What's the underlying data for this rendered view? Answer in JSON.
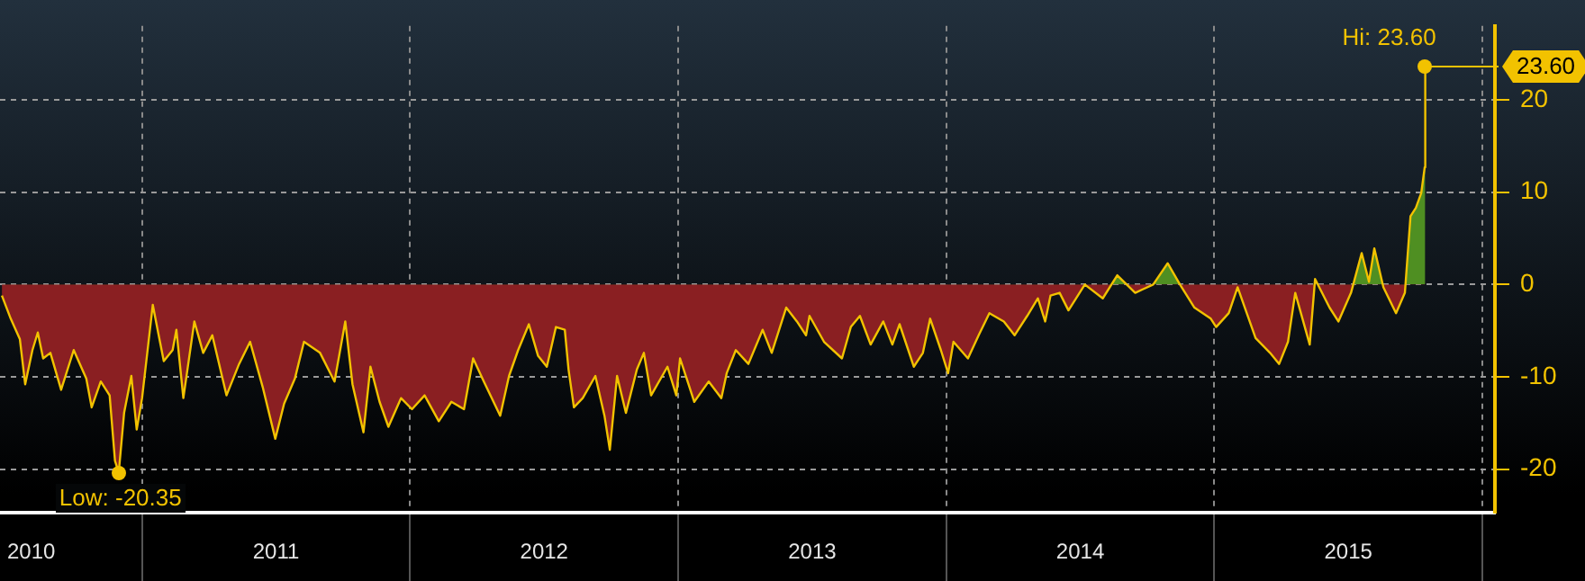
{
  "chart_data": {
    "type": "area",
    "x": [
      2010.477,
      2010.51,
      2010.544,
      2010.564,
      2010.591,
      2010.611,
      2010.631,
      2010.658,
      2010.698,
      2010.745,
      2010.792,
      2010.812,
      2010.846,
      2010.879,
      2010.899,
      2010.913,
      2010.933,
      2010.96,
      2010.98,
      2011.0,
      2011.04,
      2011.06,
      2011.081,
      2011.114,
      2011.128,
      2011.154,
      2011.195,
      2011.228,
      2011.262,
      2011.315,
      2011.362,
      2011.403,
      2011.45,
      2011.497,
      2011.53,
      2011.57,
      2011.604,
      2011.664,
      2011.718,
      2011.758,
      2011.785,
      2011.826,
      2011.852,
      2011.886,
      2011.919,
      2011.966,
      2012.007,
      2012.054,
      2012.107,
      2012.154,
      2012.201,
      2012.235,
      2012.275,
      2012.336,
      2012.369,
      2012.403,
      2012.443,
      2012.477,
      2012.51,
      2012.544,
      2012.577,
      2012.591,
      2012.611,
      2012.644,
      2012.691,
      2012.725,
      2012.745,
      2012.772,
      2012.805,
      2012.846,
      2012.872,
      2012.899,
      2012.96,
      2012.993,
      2013.007,
      2013.06,
      2013.114,
      2013.161,
      2013.181,
      2013.215,
      2013.262,
      2013.315,
      2013.349,
      2013.403,
      2013.443,
      2013.477,
      2013.49,
      2013.544,
      2013.611,
      2013.644,
      2013.678,
      2013.718,
      2013.765,
      2013.799,
      2013.826,
      2013.879,
      2013.913,
      2013.94,
      2013.98,
      2014.007,
      2014.027,
      2014.081,
      2014.121,
      2014.161,
      2014.215,
      2014.255,
      2014.302,
      2014.342,
      2014.369,
      2014.389,
      2014.423,
      2014.456,
      2014.517,
      2014.584,
      2014.638,
      2014.705,
      2014.772,
      2014.826,
      2014.872,
      2014.926,
      2014.987,
      2015.007,
      2015.054,
      2015.087,
      2015.154,
      2015.208,
      2015.242,
      2015.275,
      2015.302,
      2015.356,
      2015.376,
      2015.43,
      2015.463,
      2015.51,
      2015.55,
      2015.577,
      2015.597,
      2015.631,
      2015.678,
      2015.711,
      2015.732,
      2015.752,
      2015.772,
      2015.785,
      2015.787
    ],
    "series": [
      {
        "color": "#f2c200",
        "values": [
          -1.2,
          -3.7,
          -5.9,
          -10.8,
          -7.1,
          -5.2,
          -8.0,
          -7.4,
          -11.4,
          -7.1,
          -10.2,
          -13.3,
          -10.5,
          -12.0,
          -19.1,
          -20.35,
          -13.9,
          -9.9,
          -15.7,
          -12.3,
          -2.2,
          -5.2,
          -8.3,
          -7.1,
          -4.9,
          -12.3,
          -4.0,
          -7.4,
          -5.5,
          -12.0,
          -8.6,
          -6.2,
          -11.1,
          -16.7,
          -12.9,
          -10.2,
          -6.2,
          -7.4,
          -10.5,
          -4.0,
          -10.8,
          -16.0,
          -8.9,
          -12.7,
          -15.4,
          -12.3,
          -13.5,
          -12.0,
          -14.8,
          -12.7,
          -13.5,
          -8.0,
          -10.5,
          -14.2,
          -9.9,
          -7.1,
          -4.3,
          -7.7,
          -8.9,
          -4.6,
          -4.9,
          -9.2,
          -13.3,
          -12.3,
          -9.9,
          -14.2,
          -17.9,
          -9.9,
          -13.9,
          -9.2,
          -7.4,
          -12.0,
          -8.9,
          -12.0,
          -8.0,
          -12.7,
          -10.5,
          -12.3,
          -9.6,
          -7.1,
          -8.6,
          -4.9,
          -7.4,
          -2.5,
          -4.0,
          -5.5,
          -3.4,
          -6.2,
          -8.0,
          -4.6,
          -3.4,
          -6.5,
          -4.0,
          -6.5,
          -4.3,
          -8.9,
          -7.4,
          -3.7,
          -7.1,
          -9.6,
          -6.2,
          -8.0,
          -5.5,
          -3.1,
          -4.0,
          -5.5,
          -3.4,
          -1.5,
          -4.0,
          -1.2,
          -0.9,
          -2.8,
          0.0,
          -1.5,
          1.0,
          -0.9,
          0.0,
          2.3,
          0.0,
          -2.5,
          -3.7,
          -4.6,
          -3.1,
          -0.3,
          -5.8,
          -7.4,
          -8.6,
          -6.2,
          -0.9,
          -6.5,
          0.6,
          -2.5,
          -4.0,
          -0.9,
          3.4,
          0.3,
          3.9,
          -0.3,
          -3.1,
          -0.9,
          7.4,
          8.3,
          9.9,
          12.7,
          23.6
        ]
      }
    ],
    "xlim": [
      2010.47,
      2016.047
    ],
    "xticks": [
      {
        "value": 2010.49,
        "label": "2010"
      },
      {
        "value": 2011,
        "label": null
      },
      {
        "value": 2011.5,
        "label": "2011"
      },
      {
        "value": 2012,
        "label": null
      },
      {
        "value": 2012.5,
        "label": "2012"
      },
      {
        "value": 2013,
        "label": null
      },
      {
        "value": 2013.5,
        "label": "2013"
      },
      {
        "value": 2014,
        "label": null
      },
      {
        "value": 2014.5,
        "label": "2014"
      },
      {
        "value": 2015,
        "label": null
      },
      {
        "value": 2015.5,
        "label": "2015"
      },
      {
        "value": 2016,
        "label": null
      }
    ],
    "ylim": [
      -24.7,
      28
    ],
    "yticks": [
      -20,
      -10,
      0,
      10,
      20
    ],
    "grid": true,
    "annotations": [
      {
        "text": "Low: -20.35",
        "x": 2010.913,
        "y": -20.35
      },
      {
        "text": "Hi: 23.60",
        "x": 2015.787,
        "y": 23.6
      },
      "23.60"
    ]
  }
}
